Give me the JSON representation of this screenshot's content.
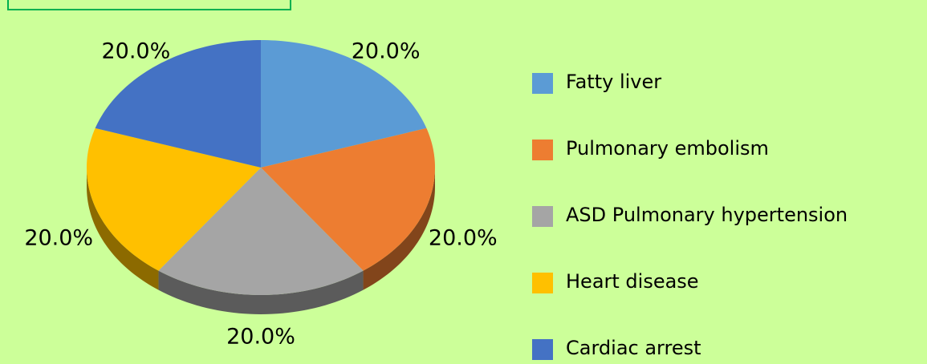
{
  "chart_data": {
    "type": "pie",
    "categories": [
      "Fatty  liver",
      "Pulmonary  embolism",
      "ASD Pulmonary hypertension",
      "Heart disease",
      "Cardiac  arrest"
    ],
    "values": [
      20,
      20,
      20,
      20,
      20
    ],
    "value_labels": [
      "20.0%",
      "20.0%",
      "20.0%",
      "20.0%",
      "20.0%"
    ],
    "colors": [
      "#5b9bd5",
      "#ed7d31",
      "#a5a5a5",
      "#ffc000",
      "#4472c4"
    ],
    "legend": "right"
  }
}
